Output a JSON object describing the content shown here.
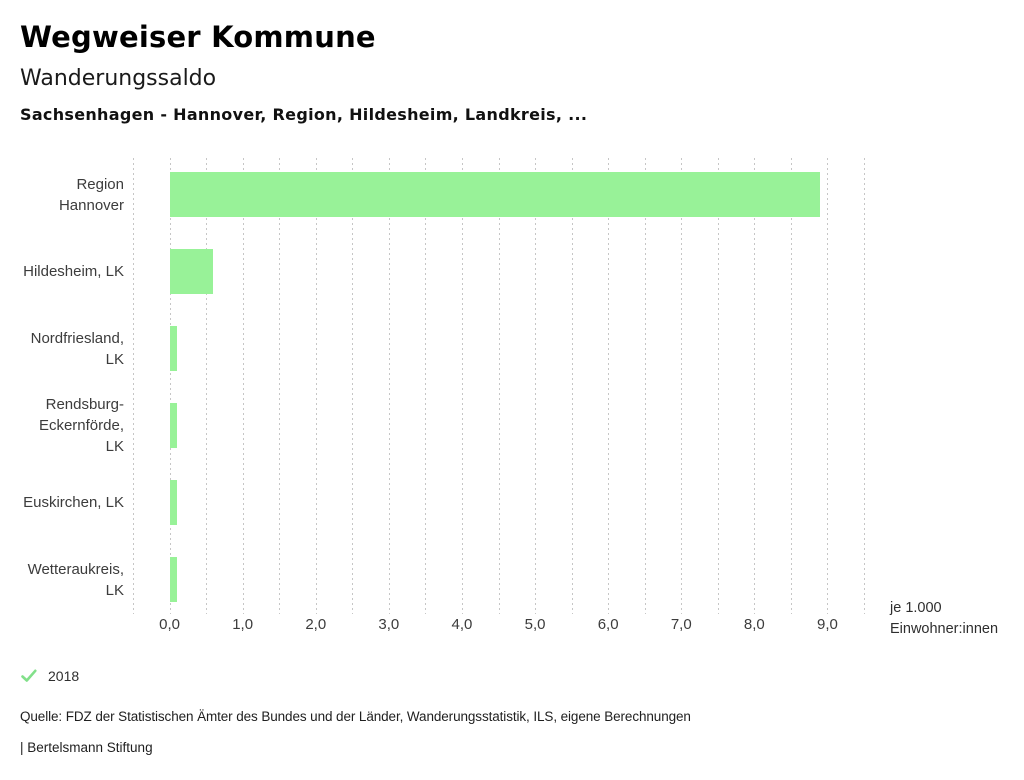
{
  "header": {
    "title": "Wegweiser Kommune",
    "subtitle": "Wanderungssaldo",
    "context": "Sachsenhagen - Hannover, Region, Hildesheim, Landkreis, ..."
  },
  "chart_data": {
    "type": "bar",
    "orientation": "horizontal",
    "title": "Wanderungssaldo",
    "categories": [
      "Region Hannover",
      "Hildesheim, LK",
      "Nordfriesland, LK",
      "Rendsburg-Eckernförde, LK",
      "Euskirchen, LK",
      "Wetteraukreis, LK"
    ],
    "category_lines": [
      [
        "Region",
        "Hannover"
      ],
      [
        "Hildesheim, LK"
      ],
      [
        "Nordfriesland,",
        "LK"
      ],
      [
        "Rendsburg-",
        "Eckernförde,",
        "LK"
      ],
      [
        "Euskirchen, LK"
      ],
      [
        "Wetteraukreis,",
        "LK"
      ]
    ],
    "series": [
      {
        "name": "2018",
        "values": [
          8.9,
          0.6,
          0.1,
          0.1,
          0.1,
          0.1
        ]
      }
    ],
    "xlim": [
      -0.5,
      9.5
    ],
    "grid_step": 0.5,
    "grid_on": true,
    "ticks": [
      {
        "value": 0,
        "label": "0,0"
      },
      {
        "value": 1,
        "label": "1,0"
      },
      {
        "value": 2,
        "label": "2,0"
      },
      {
        "value": 3,
        "label": "3,0"
      },
      {
        "value": 4,
        "label": "4,0"
      },
      {
        "value": 5,
        "label": "5,0"
      },
      {
        "value": 6,
        "label": "6,0"
      },
      {
        "value": 7,
        "label": "7,0"
      },
      {
        "value": 8,
        "label": "8,0"
      },
      {
        "value": 9,
        "label": "9,0"
      }
    ],
    "xlabel_lines": [
      "je 1.000",
      "Einwohner:innen"
    ],
    "bar_color": "#98f298",
    "legend_position": "bottom-left"
  },
  "legend": {
    "items": [
      {
        "label": "2018",
        "marker": "check-icon",
        "color": "#82e08a"
      }
    ]
  },
  "footer": {
    "source": "Quelle: FDZ der Statistischen Ämter des Bundes und der Länder, Wanderungsstatistik, ILS, eigene Berechnungen",
    "attribution": "| Bertelsmann Stiftung"
  }
}
